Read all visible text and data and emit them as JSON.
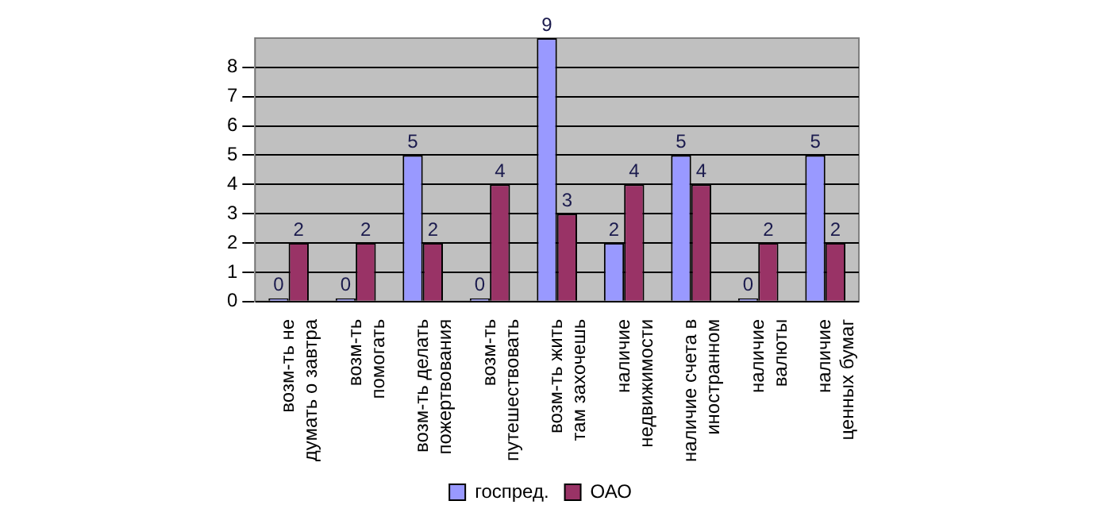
{
  "chart_data": {
    "type": "bar",
    "categories": [
      "возм-ть не\nдумать о завтра",
      "возм-ть\nпомогать",
      "возм-ть делать\nпожертвования",
      "возм-ть\nпутешествовать",
      "возм-ть жить\nтам захочешь",
      "наличие\nнедвижимости",
      "наличие счета в\nиностранном",
      "наличие\nвалюты",
      "наличие\nценных бумаг"
    ],
    "series": [
      {
        "name": "госпред.",
        "color": "#9999ff",
        "values": [
          0,
          0,
          5,
          0,
          9,
          2,
          5,
          0,
          5
        ]
      },
      {
        "name": "ОАО",
        "color": "#993366",
        "values": [
          2,
          2,
          2,
          4,
          3,
          4,
          4,
          2,
          2
        ]
      }
    ],
    "ylim": [
      0,
      9
    ],
    "yticks": [
      0,
      1,
      2,
      3,
      4,
      5,
      6,
      7,
      8
    ],
    "grid": "y",
    "legend": "bottom",
    "data_labels": true
  }
}
